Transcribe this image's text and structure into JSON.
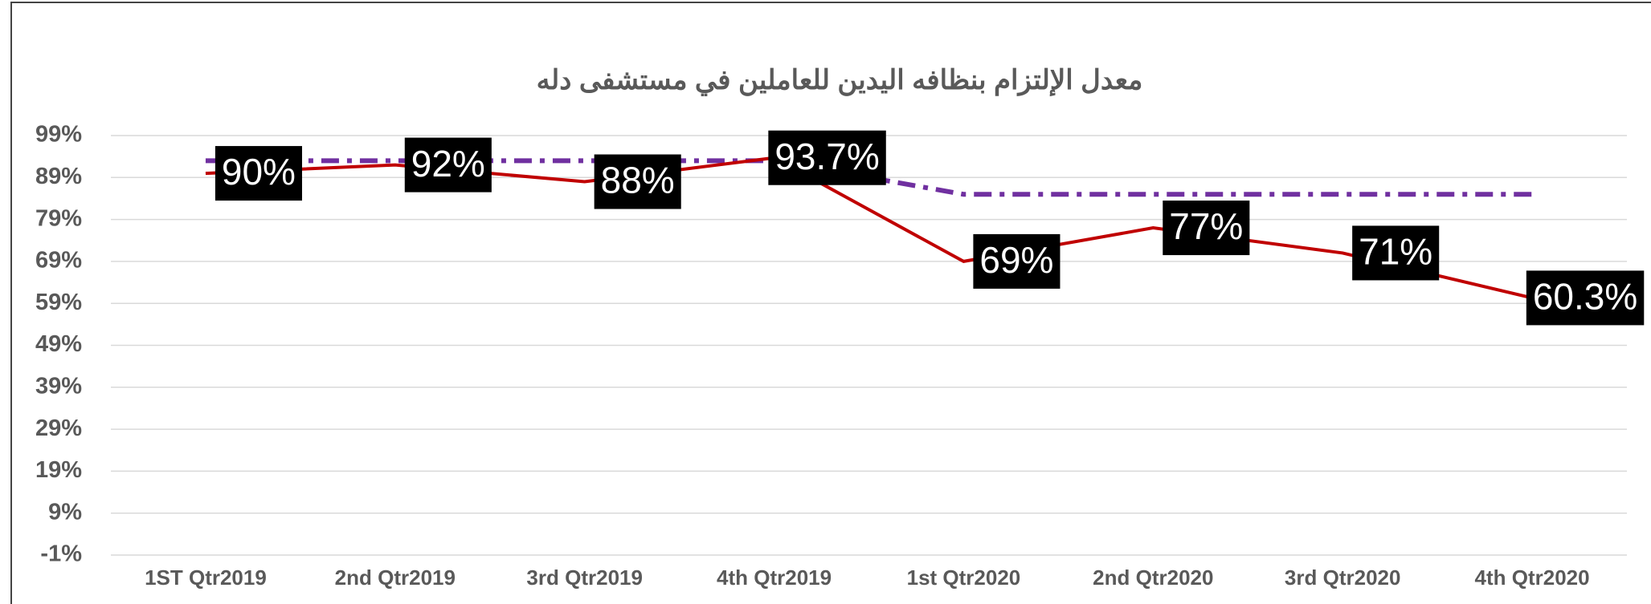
{
  "chart_data": {
    "type": "line",
    "title": "معدل الإلتزام بنظافه اليدين للعاملين في مستشفى دله",
    "categories": [
      "1ST Qtr2019",
      "2nd Qtr2019",
      "3rd Qtr2019",
      "4th Qtr2019",
      "1st Qtr2020",
      "2nd Qtr2020",
      "3rd Qtr2020",
      "4th Qtr2020"
    ],
    "series": [
      {
        "color": "#c00000",
        "style": "solid",
        "values": [
          90,
          92,
          88,
          93.7,
          69,
          77,
          71,
          60.3
        ],
        "value_labels": [
          "90%",
          "92%",
          "88%",
          "93.7%",
          "69%",
          "77%",
          "71%",
          "60.3%"
        ]
      },
      {
        "color": "#7030a0",
        "style": "dashdot",
        "values": [
          93,
          93,
          93,
          93,
          85,
          85,
          85,
          85
        ]
      }
    ],
    "ylim": [
      -1,
      99
    ],
    "yticks": [
      {
        "value": -1,
        "label": "-1%"
      },
      {
        "value": 9,
        "label": "9%"
      },
      {
        "value": 19,
        "label": "19%"
      },
      {
        "value": 29,
        "label": "29%"
      },
      {
        "value": 39,
        "label": "39%"
      },
      {
        "value": 49,
        "label": "49%"
      },
      {
        "value": 59,
        "label": "59%"
      },
      {
        "value": 69,
        "label": "69%"
      },
      {
        "value": 79,
        "label": "79%"
      },
      {
        "value": 89,
        "label": "89%"
      },
      {
        "value": 99,
        "label": "99%"
      }
    ],
    "grid": true
  }
}
